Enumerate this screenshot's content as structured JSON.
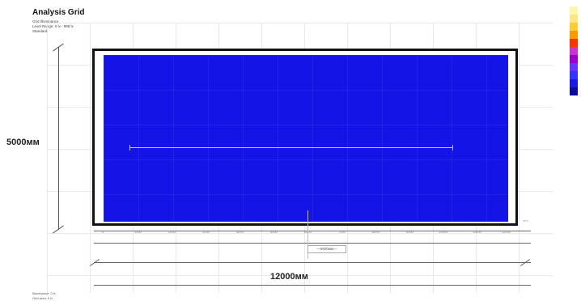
{
  "header": {
    "title": "Analysis Grid",
    "line1": "Grid Illuminance",
    "line2": "Level Range: 0 lx - 999 lx",
    "line3": "Standard"
  },
  "dimensions": {
    "height_label": "5000мм",
    "width_label": "12000мм",
    "inner_marker": "—5500мм—"
  },
  "ticks": [
    "0",
    "1000",
    "2000",
    "3000",
    "4000",
    "5000",
    "6000",
    "7000",
    "8000",
    "9000",
    "10000",
    "11000",
    "12000"
  ],
  "scale_end": "mm",
  "legend": {
    "colors": [
      "#fff7a8",
      "#ffe680",
      "#ffcc33",
      "#ff9900",
      "#ff3300",
      "#cc33cc",
      "#9900cc",
      "#6633ff",
      "#3333ff",
      "#1a1ae6",
      "#0d0d99"
    ]
  },
  "footer": {
    "line1": "Illuminance: 0 lx",
    "line2": "Grid area: 0 lx"
  }
}
